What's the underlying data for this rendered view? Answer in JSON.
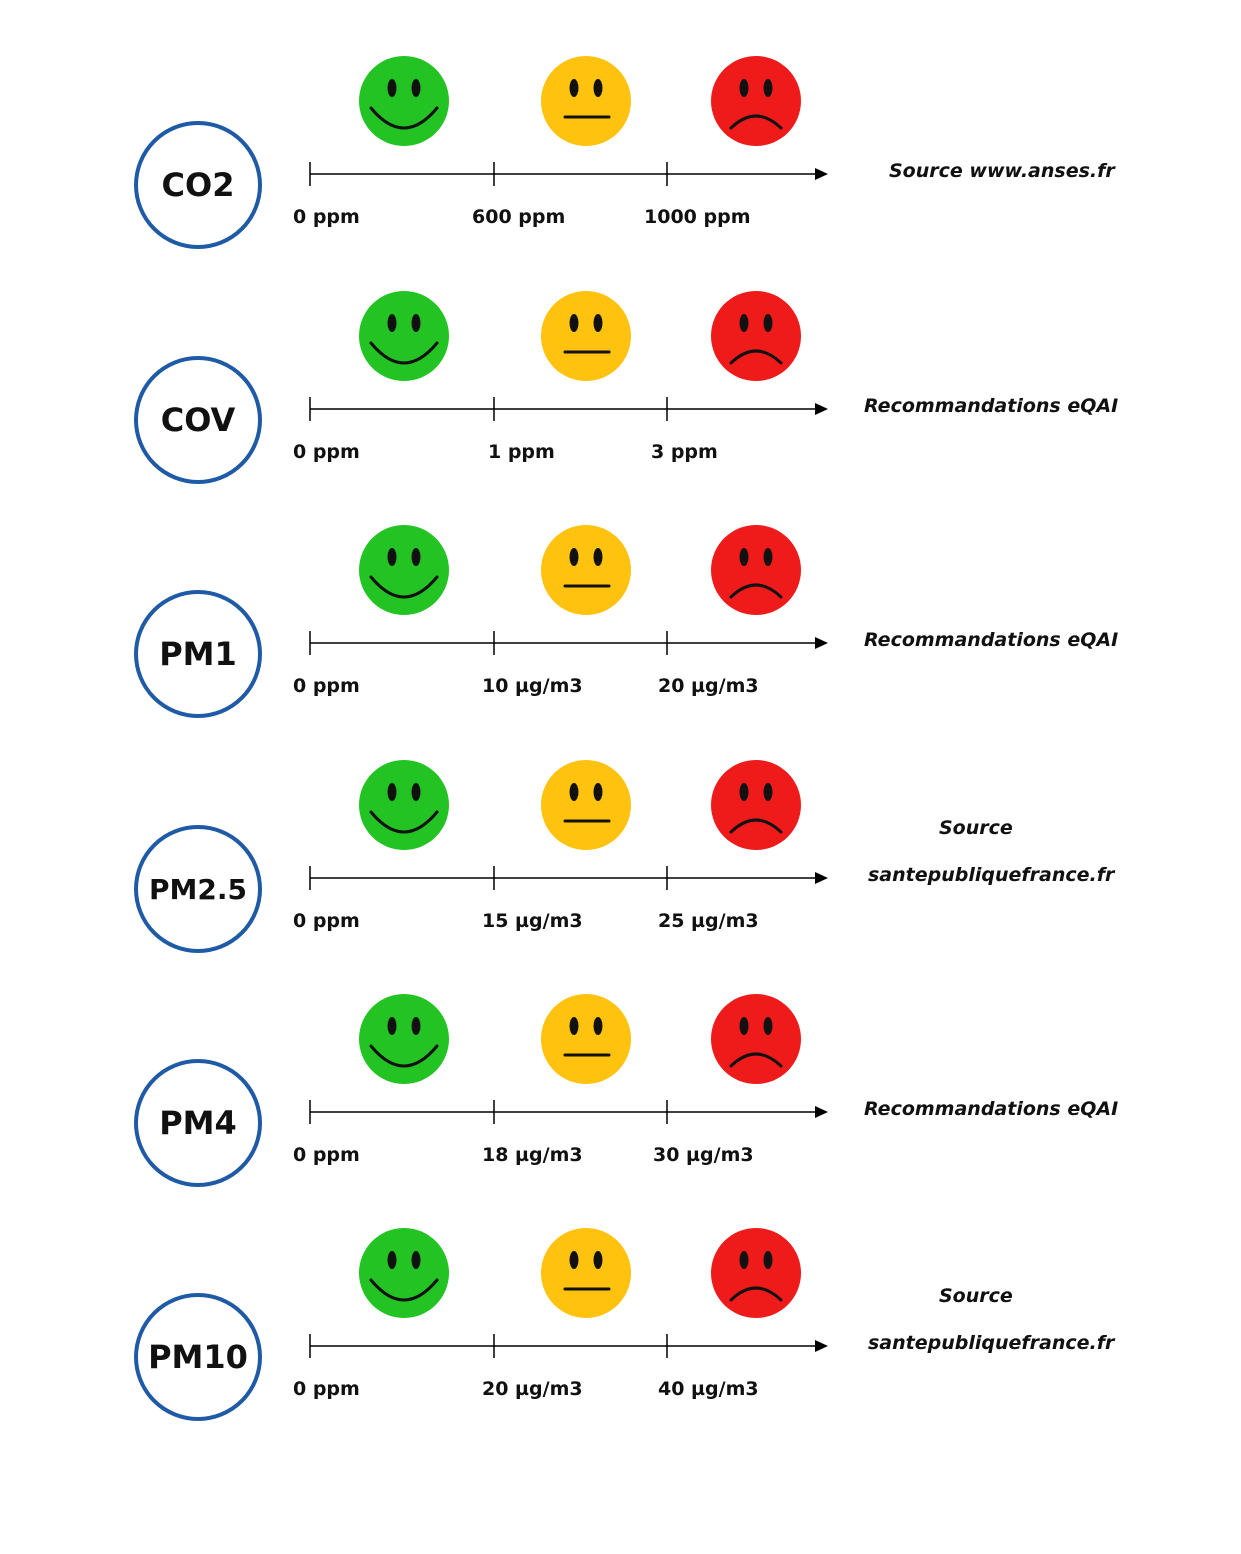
{
  "indicators": [
    {
      "name": "CO2",
      "ticks": [
        "0 ppm",
        "600 ppm",
        "1000 ppm"
      ],
      "source_lines": [
        "Source www.anses.fr"
      ]
    },
    {
      "name": "COV",
      "ticks": [
        "0 ppm",
        "1 ppm",
        "3 ppm"
      ],
      "source_lines": [
        "Recommandations eQAI"
      ]
    },
    {
      "name": "PM1",
      "ticks": [
        "0 ppm",
        "10 µg/m3",
        "20 µg/m3"
      ],
      "source_lines": [
        "Recommandations eQAI"
      ]
    },
    {
      "name": "PM2.5",
      "ticks": [
        "0 ppm",
        "15 µg/m3",
        "25 µg/m3"
      ],
      "source_lines": [
        "Source",
        "santepubliquefrance.fr"
      ]
    },
    {
      "name": "PM4",
      "ticks": [
        "0 ppm",
        "18 µg/m3",
        "30 µg/m3"
      ],
      "source_lines": [
        "Recommandations eQAI"
      ]
    },
    {
      "name": "PM10",
      "ticks": [
        "0 ppm",
        "20 µg/m3",
        "40 µg/m3"
      ],
      "source_lines": [
        "Source",
        "santepubliquefrance.fr"
      ]
    }
  ],
  "smileys": [
    {
      "mood": "happy",
      "icon": "happy-face-icon",
      "color": "#22c322"
    },
    {
      "mood": "neutral",
      "icon": "neutral-face-icon",
      "color": "#ffc20e"
    },
    {
      "mood": "sad",
      "icon": "sad-face-icon",
      "color": "#ef1a1a"
    }
  ],
  "colors": {
    "badge_border": "#1f5aa6",
    "axis": "#000000"
  }
}
